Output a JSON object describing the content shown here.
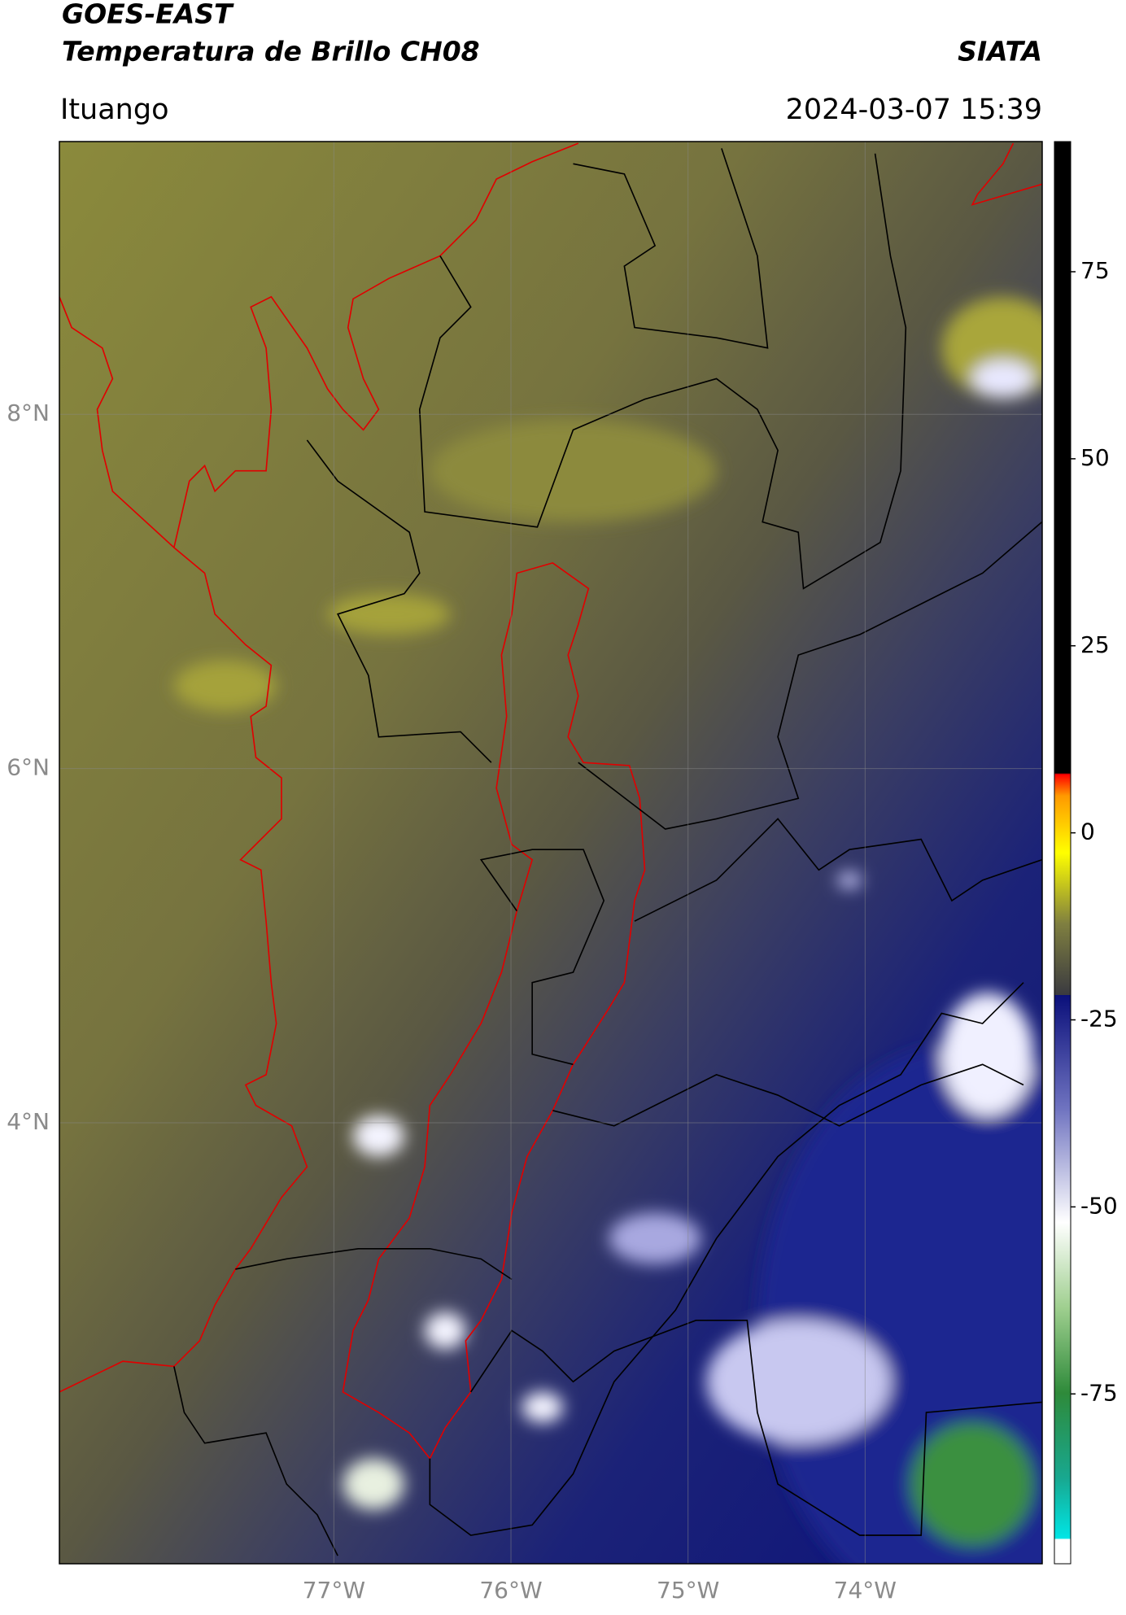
{
  "header": {
    "title": "GOES-EAST",
    "subtitle": "Temperatura de Brillo CH08",
    "source": "SIATA",
    "location": "Ituango",
    "timestamp": "2024-03-07 15:39"
  },
  "map": {
    "xlim": [
      -78.55,
      -73.0
    ],
    "ylim": [
      1.51,
      9.54
    ],
    "xticks": [
      {
        "value": -77,
        "label": "77°W"
      },
      {
        "value": -76,
        "label": "76°W"
      },
      {
        "value": -75,
        "label": "75°W"
      },
      {
        "value": -74,
        "label": "74°W"
      }
    ],
    "yticks": [
      {
        "value": 4,
        "label": "4°N"
      },
      {
        "value": 6,
        "label": "6°N"
      },
      {
        "value": 8,
        "label": "8°N"
      }
    ],
    "grid": true
  },
  "colorbar": {
    "lim": [
      -97.7,
      92.4
    ],
    "ticks": [
      -75,
      -50,
      -25,
      0,
      25,
      50,
      75
    ]
  }
}
